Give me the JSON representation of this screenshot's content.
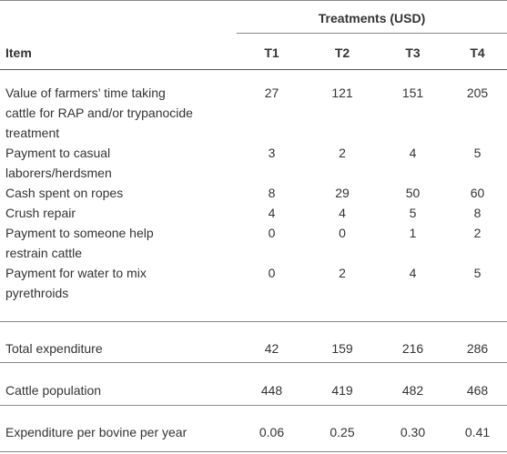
{
  "table": {
    "group_header": "Treatments (USD)",
    "columns": [
      "Item",
      "T1",
      "T2",
      "T3",
      "T4"
    ],
    "rows": [
      [
        "Value of farmers’ time taking\ncattle for RAP and/or trypanocide\ntreatment",
        "27",
        "121",
        "151",
        "205"
      ],
      [
        "Payment to casual\nlaborers/herdsmen",
        "3",
        "2",
        "4",
        "5"
      ],
      [
        "Cash spent on ropes",
        "8",
        "29",
        "50",
        "60"
      ],
      [
        "Crush repair",
        "4",
        "4",
        "5",
        "8"
      ],
      [
        "Payment to someone help\nrestrain cattle",
        "0",
        "0",
        "1",
        "2"
      ],
      [
        "Payment for water to mix\npyrethroids",
        "0",
        "2",
        "4",
        "5"
      ],
      [
        "Total expenditure",
        "42",
        "159",
        "216",
        "286"
      ],
      [
        "Cattle population",
        "448",
        "419",
        "482",
        "468"
      ],
      [
        "Expenditure per bovine per year",
        "0.06",
        "0.25",
        "0.30",
        "0.41"
      ]
    ]
  }
}
